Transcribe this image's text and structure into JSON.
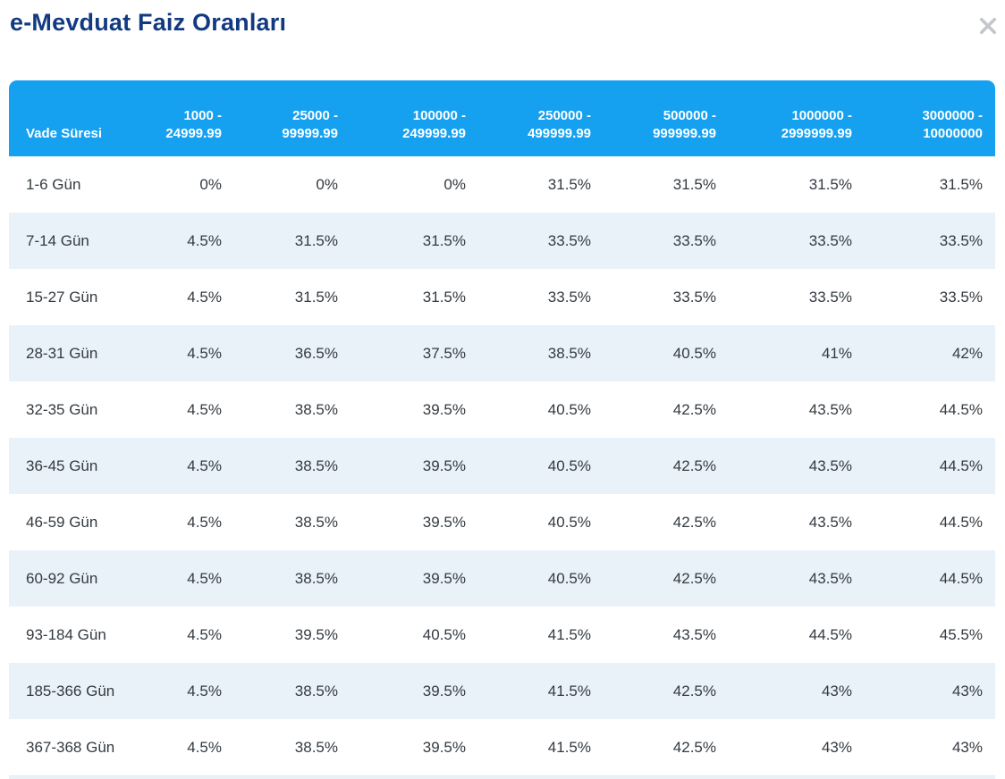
{
  "modal": {
    "title": "e-Mevduat Faiz Oranları",
    "close_icon": "×"
  },
  "colors": {
    "title": "#123a80",
    "header_bg": "#16a1f0",
    "header_text": "#ffffff",
    "row_alt_bg": "#eaf2f9",
    "row_text": "#333a40",
    "close_icon": "#c3c7cb"
  },
  "table": {
    "label_header": "Vade Süresi",
    "amount_headers": [
      "1000 -\n24999.99",
      "25000 -\n99999.99",
      "100000 -\n249999.99",
      "250000 -\n499999.99",
      "500000 -\n999999.99",
      "1000000 -\n2999999.99",
      "3000000 -\n10000000"
    ],
    "rows": [
      {
        "label": "1-6 Gün",
        "values": [
          "0%",
          "0%",
          "0%",
          "31.5%",
          "31.5%",
          "31.5%",
          "31.5%"
        ]
      },
      {
        "label": "7-14 Gün",
        "values": [
          "4.5%",
          "31.5%",
          "31.5%",
          "33.5%",
          "33.5%",
          "33.5%",
          "33.5%"
        ]
      },
      {
        "label": "15-27 Gün",
        "values": [
          "4.5%",
          "31.5%",
          "31.5%",
          "33.5%",
          "33.5%",
          "33.5%",
          "33.5%"
        ]
      },
      {
        "label": "28-31 Gün",
        "values": [
          "4.5%",
          "36.5%",
          "37.5%",
          "38.5%",
          "40.5%",
          "41%",
          "42%"
        ]
      },
      {
        "label": "32-35 Gün",
        "values": [
          "4.5%",
          "38.5%",
          "39.5%",
          "40.5%",
          "42.5%",
          "43.5%",
          "44.5%"
        ]
      },
      {
        "label": "36-45 Gün",
        "values": [
          "4.5%",
          "38.5%",
          "39.5%",
          "40.5%",
          "42.5%",
          "43.5%",
          "44.5%"
        ]
      },
      {
        "label": "46-59 Gün",
        "values": [
          "4.5%",
          "38.5%",
          "39.5%",
          "40.5%",
          "42.5%",
          "43.5%",
          "44.5%"
        ]
      },
      {
        "label": "60-92 Gün",
        "values": [
          "4.5%",
          "38.5%",
          "39.5%",
          "40.5%",
          "42.5%",
          "43.5%",
          "44.5%"
        ]
      },
      {
        "label": "93-184 Gün",
        "values": [
          "4.5%",
          "39.5%",
          "40.5%",
          "41.5%",
          "43.5%",
          "44.5%",
          "45.5%"
        ]
      },
      {
        "label": "185-366 Gün",
        "values": [
          "4.5%",
          "38.5%",
          "39.5%",
          "41.5%",
          "42.5%",
          "43%",
          "43%"
        ]
      },
      {
        "label": "367-368 Gün",
        "values": [
          "4.5%",
          "38.5%",
          "39.5%",
          "41.5%",
          "42.5%",
          "43%",
          "43%"
        ]
      }
    ]
  }
}
